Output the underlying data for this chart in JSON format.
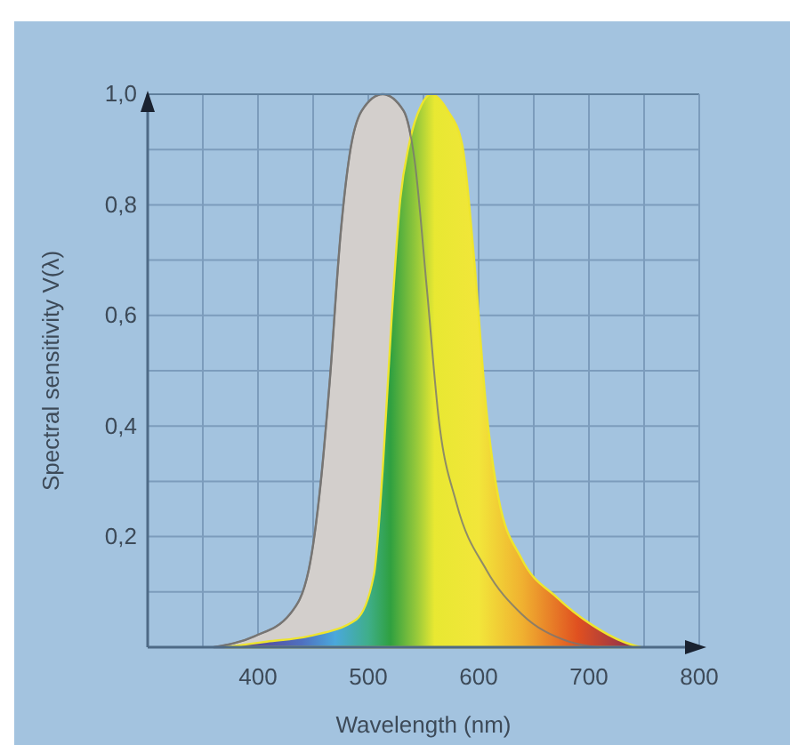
{
  "chart_data": {
    "type": "area",
    "xlabel": "Wavelength (nm)",
    "ylabel": "Spectral sensitivity V(λ)",
    "xlim": [
      300,
      800
    ],
    "ylim": [
      0,
      1
    ],
    "xticks": [
      {
        "value": 350,
        "label": null
      },
      400,
      {
        "value": 450,
        "label": null
      },
      500,
      {
        "value": 550,
        "label": null
      },
      600,
      {
        "value": 650,
        "label": null
      },
      700,
      {
        "value": 750,
        "label": null
      },
      800
    ],
    "yticks": [
      {
        "value": 0.1,
        "label": null
      },
      {
        "value": 0.2,
        "label": "0,2"
      },
      {
        "value": 0.3,
        "label": null
      },
      {
        "value": 0.4,
        "label": "0,4"
      },
      {
        "value": 0.5,
        "label": null
      },
      {
        "value": 0.6,
        "label": "0,6"
      },
      {
        "value": 0.7,
        "label": null
      },
      {
        "value": 0.8,
        "label": "0,8"
      },
      {
        "value": 0.9,
        "label": null
      },
      {
        "value": 1,
        "label": "1,0"
      }
    ],
    "grid": true,
    "series": [
      {
        "color": "#d3cfcc",
        "x": [
          360,
          397,
          429,
          446,
          457,
          465,
          475,
          483,
          494,
          513,
          532,
          542,
          553,
          564,
          580,
          607,
          639,
          682,
          709
        ],
        "values": [
          0,
          0.02,
          0.06,
          0.14,
          0.3,
          0.48,
          0.75,
          0.89,
          0.97,
          1,
          0.97,
          0.88,
          0.65,
          0.41,
          0.26,
          0.14,
          0.06,
          0.01,
          0
        ]
      },
      {
        "color": "#eee52e",
        "x": [
          370,
          408,
          446,
          489,
          505,
          513,
          521,
          529,
          537,
          548,
          557,
          572,
          585,
          596,
          607,
          618,
          639,
          671,
          703,
          731,
          747
        ],
        "values": [
          0,
          0.01,
          0.02,
          0.05,
          0.13,
          0.32,
          0.59,
          0.81,
          0.91,
          0.98,
          1,
          0.97,
          0.91,
          0.7,
          0.43,
          0.27,
          0.16,
          0.09,
          0.04,
          0.01,
          0
        ]
      }
    ]
  }
}
